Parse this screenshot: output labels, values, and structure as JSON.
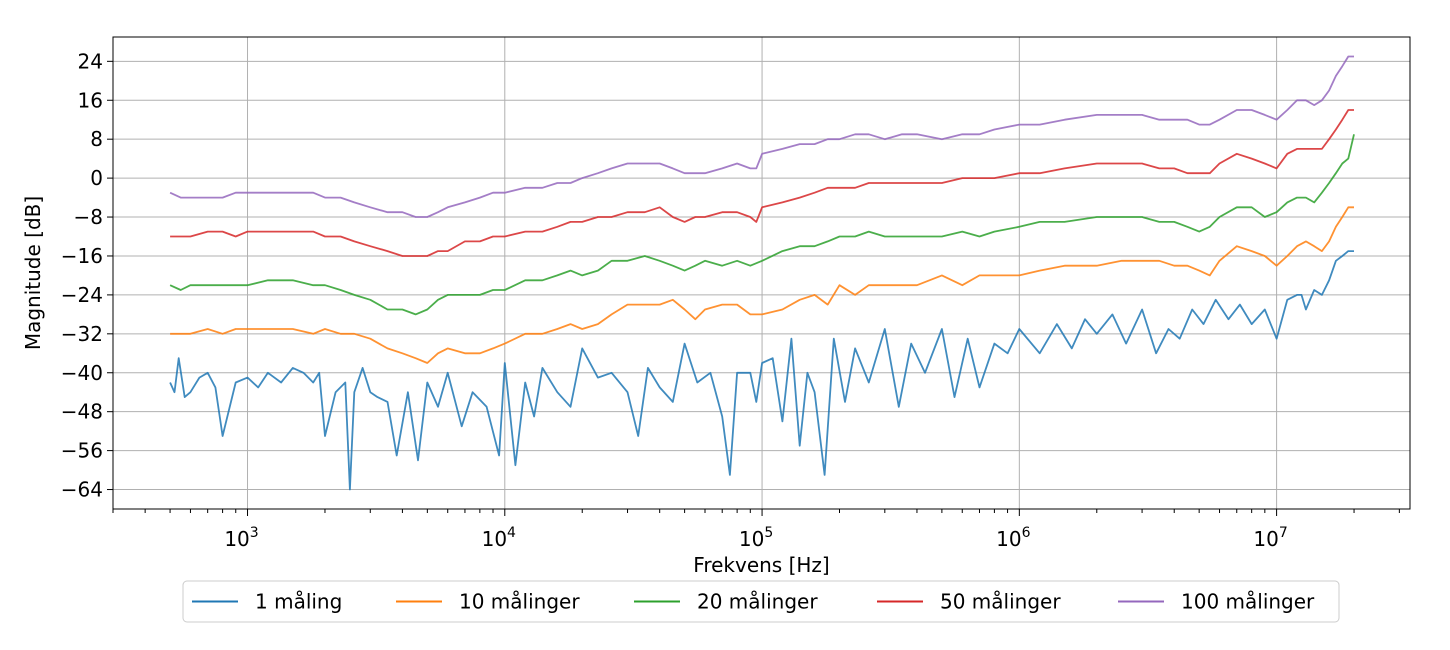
{
  "chart_data": {
    "type": "line",
    "xscale": "log",
    "xlabel": "Frekvens [Hz]",
    "ylabel": "Magnitude [dB]",
    "xlim": [
      300,
      33000000
    ],
    "ylim": [
      -68,
      29
    ],
    "yticks": [
      24,
      16,
      8,
      0,
      -8,
      -16,
      -24,
      -32,
      -40,
      -48,
      -56,
      -64
    ],
    "xticks": [
      {
        "value": 1000,
        "base": "10",
        "exp": "3"
      },
      {
        "value": 10000,
        "base": "10",
        "exp": "4"
      },
      {
        "value": 100000,
        "base": "10",
        "exp": "5"
      },
      {
        "value": 1000000,
        "base": "10",
        "exp": "6"
      },
      {
        "value": 10000000,
        "base": "10",
        "exp": "7"
      }
    ],
    "grid": true,
    "legend_position": "bottom-center",
    "series": [
      {
        "name": "1 måling",
        "color": "#1f77b4",
        "x": [
          500,
          520,
          540,
          570,
          600,
          650,
          700,
          750,
          800,
          900,
          1000,
          1100,
          1200,
          1350,
          1500,
          1650,
          1800,
          1900,
          2000,
          2200,
          2400,
          2500,
          2600,
          2800,
          3000,
          3200,
          3500,
          3800,
          4200,
          4600,
          5000,
          5500,
          6000,
          6800,
          7500,
          8500,
          9500,
          10000,
          11000,
          12000,
          13000,
          14000,
          16000,
          18000,
          20000,
          23000,
          26000,
          30000,
          33000,
          36000,
          40000,
          45000,
          50000,
          56000,
          63000,
          70000,
          75000,
          80000,
          90000,
          95000,
          100000,
          110000,
          120000,
          130000,
          140000,
          150000,
          160000,
          175000,
          190000,
          210000,
          230000,
          260000,
          300000,
          340000,
          380000,
          430000,
          500000,
          560000,
          630000,
          700000,
          800000,
          900000,
          1000000,
          1200000,
          1400000,
          1600000,
          1800000,
          2000000,
          2300000,
          2600000,
          3000000,
          3400000,
          3800000,
          4200000,
          4700000,
          5200000,
          5800000,
          6500000,
          7200000,
          8000000,
          9000000,
          10000000,
          11000000,
          12000000,
          12500000,
          13000000,
          14000000,
          15000000,
          16000000,
          17000000,
          18000000,
          19000000,
          20000000
        ],
        "y": [
          -42,
          -44,
          -37,
          -45,
          -44,
          -41,
          -40,
          -43,
          -53,
          -42,
          -41,
          -43,
          -40,
          -42,
          -39,
          -40,
          -42,
          -40,
          -53,
          -44,
          -42,
          -64,
          -44,
          -39,
          -44,
          -45,
          -46,
          -57,
          -44,
          -58,
          -42,
          -47,
          -40,
          -51,
          -44,
          -47,
          -57,
          -38,
          -59,
          -42,
          -49,
          -39,
          -44,
          -47,
          -35,
          -41,
          -40,
          -44,
          -53,
          -39,
          -43,
          -46,
          -34,
          -42,
          -40,
          -49,
          -61,
          -40,
          -40,
          -46,
          -38,
          -37,
          -50,
          -33,
          -55,
          -40,
          -44,
          -61,
          -33,
          -46,
          -35,
          -42,
          -31,
          -47,
          -34,
          -40,
          -31,
          -45,
          -33,
          -43,
          -34,
          -36,
          -31,
          -36,
          -30,
          -35,
          -29,
          -32,
          -28,
          -34,
          -27,
          -36,
          -31,
          -33,
          -27,
          -30,
          -25,
          -29,
          -26,
          -30,
          -27,
          -33,
          -25,
          -24,
          -24,
          -27,
          -23,
          -24,
          -21,
          -17,
          -16,
          -15,
          -15
        ]
      },
      {
        "name": "10 målinger",
        "color": "#ff7f0e",
        "x": [
          500,
          550,
          600,
          700,
          800,
          900,
          1000,
          1200,
          1500,
          1800,
          2000,
          2300,
          2600,
          3000,
          3500,
          4000,
          4500,
          5000,
          5500,
          6000,
          7000,
          8000,
          9000,
          10000,
          12000,
          14000,
          16000,
          18000,
          20000,
          23000,
          26000,
          30000,
          35000,
          40000,
          45000,
          50000,
          55000,
          60000,
          70000,
          80000,
          90000,
          100000,
          120000,
          140000,
          160000,
          180000,
          200000,
          230000,
          260000,
          300000,
          350000,
          400000,
          500000,
          600000,
          700000,
          800000,
          1000000,
          1200000,
          1500000,
          2000000,
          2500000,
          3000000,
          3500000,
          4000000,
          4500000,
          5000000,
          5500000,
          6000000,
          7000000,
          8000000,
          9000000,
          10000000,
          11000000,
          12000000,
          13000000,
          14000000,
          15000000,
          16000000,
          17000000,
          18000000,
          19000000,
          20000000
        ],
        "y": [
          -32,
          -32,
          -32,
          -31,
          -32,
          -31,
          -31,
          -31,
          -31,
          -32,
          -31,
          -32,
          -32,
          -33,
          -35,
          -36,
          -37,
          -38,
          -36,
          -35,
          -36,
          -36,
          -35,
          -34,
          -32,
          -32,
          -31,
          -30,
          -31,
          -30,
          -28,
          -26,
          -26,
          -26,
          -25,
          -27,
          -29,
          -27,
          -26,
          -26,
          -28,
          -28,
          -27,
          -25,
          -24,
          -26,
          -22,
          -24,
          -22,
          -22,
          -22,
          -22,
          -20,
          -22,
          -20,
          -20,
          -20,
          -19,
          -18,
          -18,
          -17,
          -17,
          -17,
          -18,
          -18,
          -19,
          -20,
          -17,
          -14,
          -15,
          -16,
          -18,
          -16,
          -14,
          -13,
          -14,
          -15,
          -13,
          -10,
          -8,
          -6,
          -6
        ]
      },
      {
        "name": "20 målinger",
        "color": "#2ca02c",
        "x": [
          500,
          550,
          600,
          700,
          800,
          900,
          1000,
          1200,
          1500,
          1800,
          2000,
          2300,
          2600,
          3000,
          3500,
          4000,
          4500,
          5000,
          5500,
          6000,
          7000,
          8000,
          9000,
          10000,
          12000,
          14000,
          16000,
          18000,
          20000,
          23000,
          26000,
          30000,
          35000,
          40000,
          45000,
          50000,
          55000,
          60000,
          70000,
          80000,
          90000,
          100000,
          120000,
          140000,
          160000,
          180000,
          200000,
          230000,
          260000,
          300000,
          350000,
          400000,
          500000,
          600000,
          700000,
          800000,
          1000000,
          1200000,
          1500000,
          2000000,
          2500000,
          3000000,
          3500000,
          4000000,
          4500000,
          5000000,
          5500000,
          6000000,
          7000000,
          8000000,
          9000000,
          10000000,
          11000000,
          12000000,
          13000000,
          14000000,
          15000000,
          16000000,
          17000000,
          18000000,
          19000000,
          20000000
        ],
        "y": [
          -22,
          -23,
          -22,
          -22,
          -22,
          -22,
          -22,
          -21,
          -21,
          -22,
          -22,
          -23,
          -24,
          -25,
          -27,
          -27,
          -28,
          -27,
          -25,
          -24,
          -24,
          -24,
          -23,
          -23,
          -21,
          -21,
          -20,
          -19,
          -20,
          -19,
          -17,
          -17,
          -16,
          -17,
          -18,
          -19,
          -18,
          -17,
          -18,
          -17,
          -18,
          -17,
          -15,
          -14,
          -14,
          -13,
          -12,
          -12,
          -11,
          -12,
          -12,
          -12,
          -12,
          -11,
          -12,
          -11,
          -10,
          -9,
          -9,
          -8,
          -8,
          -8,
          -9,
          -9,
          -10,
          -11,
          -10,
          -8,
          -6,
          -6,
          -8,
          -7,
          -5,
          -4,
          -4,
          -5,
          -3,
          -1,
          1,
          3,
          4,
          9
        ]
      },
      {
        "name": "50 målinger",
        "color": "#d62728",
        "x": [
          500,
          550,
          600,
          700,
          800,
          900,
          1000,
          1200,
          1500,
          1800,
          2000,
          2300,
          2600,
          3000,
          3500,
          4000,
          4500,
          5000,
          5500,
          6000,
          7000,
          8000,
          9000,
          10000,
          12000,
          14000,
          16000,
          18000,
          20000,
          23000,
          26000,
          30000,
          35000,
          40000,
          45000,
          50000,
          55000,
          60000,
          70000,
          80000,
          90000,
          95000,
          100000,
          120000,
          140000,
          160000,
          180000,
          200000,
          230000,
          260000,
          300000,
          350000,
          400000,
          500000,
          600000,
          700000,
          800000,
          1000000,
          1200000,
          1500000,
          2000000,
          2500000,
          3000000,
          3500000,
          4000000,
          4500000,
          5000000,
          5500000,
          6000000,
          7000000,
          8000000,
          9000000,
          10000000,
          11000000,
          12000000,
          13000000,
          14000000,
          15000000,
          16000000,
          17000000,
          18000000,
          19000000,
          20000000
        ],
        "y": [
          -12,
          -12,
          -12,
          -11,
          -11,
          -12,
          -11,
          -11,
          -11,
          -11,
          -12,
          -12,
          -13,
          -14,
          -15,
          -16,
          -16,
          -16,
          -15,
          -15,
          -13,
          -13,
          -12,
          -12,
          -11,
          -11,
          -10,
          -9,
          -9,
          -8,
          -8,
          -7,
          -7,
          -6,
          -8,
          -9,
          -8,
          -8,
          -7,
          -7,
          -8,
          -9,
          -6,
          -5,
          -4,
          -3,
          -2,
          -2,
          -2,
          -1,
          -1,
          -1,
          -1,
          -1,
          0,
          0,
          0,
          1,
          1,
          2,
          3,
          3,
          3,
          2,
          2,
          1,
          1,
          1,
          3,
          5,
          4,
          3,
          2,
          5,
          6,
          6,
          6,
          6,
          8,
          10,
          12,
          14,
          14
        ]
      },
      {
        "name": "100 målinger",
        "color": "#9467bd",
        "x": [
          500,
          550,
          600,
          700,
          800,
          900,
          1000,
          1200,
          1500,
          1800,
          2000,
          2300,
          2600,
          3000,
          3500,
          4000,
          4500,
          5000,
          5500,
          6000,
          7000,
          8000,
          9000,
          10000,
          12000,
          14000,
          16000,
          18000,
          20000,
          23000,
          26000,
          30000,
          35000,
          40000,
          45000,
          50000,
          55000,
          60000,
          70000,
          80000,
          90000,
          95000,
          100000,
          120000,
          140000,
          160000,
          180000,
          200000,
          230000,
          260000,
          300000,
          350000,
          400000,
          500000,
          600000,
          700000,
          800000,
          1000000,
          1200000,
          1500000,
          2000000,
          2500000,
          3000000,
          3500000,
          4000000,
          4500000,
          5000000,
          5500000,
          6000000,
          7000000,
          8000000,
          9000000,
          10000000,
          11000000,
          12000000,
          13000000,
          14000000,
          15000000,
          16000000,
          17000000,
          18000000,
          19000000,
          20000000
        ],
        "y": [
          -3,
          -4,
          -4,
          -4,
          -4,
          -3,
          -3,
          -3,
          -3,
          -3,
          -4,
          -4,
          -5,
          -6,
          -7,
          -7,
          -8,
          -8,
          -7,
          -6,
          -5,
          -4,
          -3,
          -3,
          -2,
          -2,
          -1,
          -1,
          0,
          1,
          2,
          3,
          3,
          3,
          2,
          1,
          1,
          1,
          2,
          3,
          2,
          2,
          5,
          6,
          7,
          7,
          8,
          8,
          9,
          9,
          8,
          9,
          9,
          8,
          9,
          9,
          10,
          11,
          11,
          12,
          13,
          13,
          13,
          12,
          12,
          12,
          11,
          11,
          12,
          14,
          14,
          13,
          12,
          14,
          16,
          16,
          15,
          16,
          18,
          21,
          23,
          25,
          25
        ]
      }
    ]
  }
}
